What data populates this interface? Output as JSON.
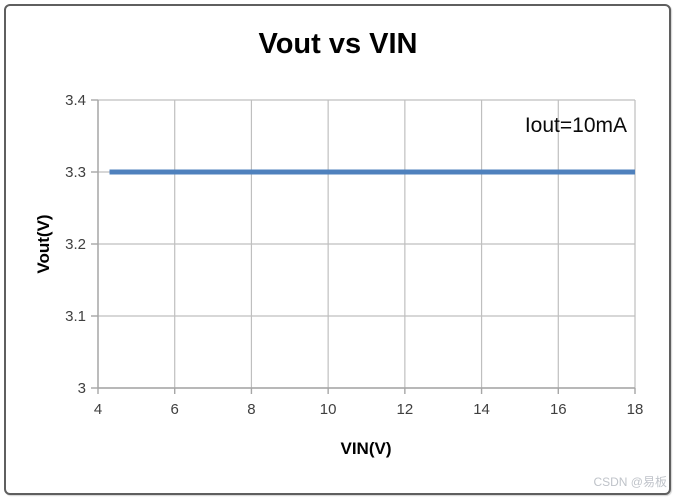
{
  "page": {
    "watermark": "CSDN @易板"
  },
  "chart_data": {
    "type": "line",
    "title": "Vout vs VIN",
    "xlabel": "VIN(V)",
    "ylabel": "Vout(V)",
    "annotation": "Iout=10mA",
    "xlim": [
      4,
      18
    ],
    "ylim": [
      3,
      3.4
    ],
    "xticks": [
      4,
      6,
      8,
      10,
      12,
      14,
      16,
      18
    ],
    "xtick_labels": [
      "4",
      "6",
      "8",
      "10",
      "12",
      "14",
      "16",
      "18"
    ],
    "yticks": [
      3,
      3.1,
      3.2,
      3.3,
      3.4
    ],
    "ytick_labels": [
      "3",
      "3.1",
      "3.2",
      "3.3",
      "3.4"
    ],
    "grid": true,
    "legend": "none",
    "colors": {
      "series": "#4f81bd",
      "grid": "#bfbfbf",
      "axis": "#a6a6a6",
      "tick_text": "#3f3f3f"
    },
    "series": [
      {
        "points": [
          [
            4.3,
            3.3
          ],
          [
            18,
            3.3
          ]
        ],
        "stroke_width": 5
      }
    ]
  }
}
